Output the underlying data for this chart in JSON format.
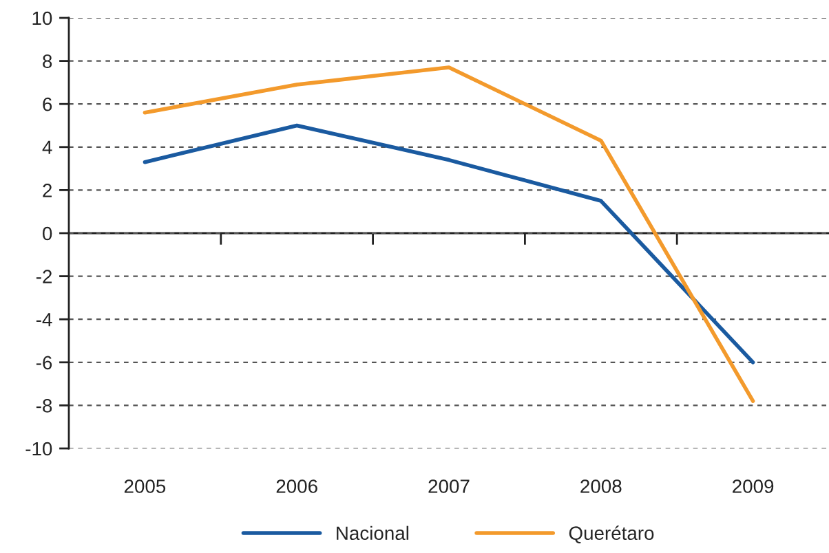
{
  "chart_data": {
    "type": "line",
    "categories": [
      "2005",
      "2006",
      "2007",
      "2008",
      "2009"
    ],
    "series": [
      {
        "name": "Nacional",
        "color": "#1a5aa0",
        "values": [
          3.3,
          5.0,
          3.4,
          1.5,
          -6.0
        ]
      },
      {
        "name": "Querétaro",
        "color": "#f39a2c",
        "values": [
          5.6,
          6.9,
          7.7,
          4.3,
          -7.8
        ]
      }
    ],
    "ylim": [
      -10,
      10
    ],
    "yticks": [
      -10,
      -8,
      -6,
      -4,
      -2,
      0,
      2,
      4,
      6,
      8,
      10
    ],
    "grid": "y",
    "legend": "bottom",
    "marker": "none",
    "line_style": "solid"
  }
}
